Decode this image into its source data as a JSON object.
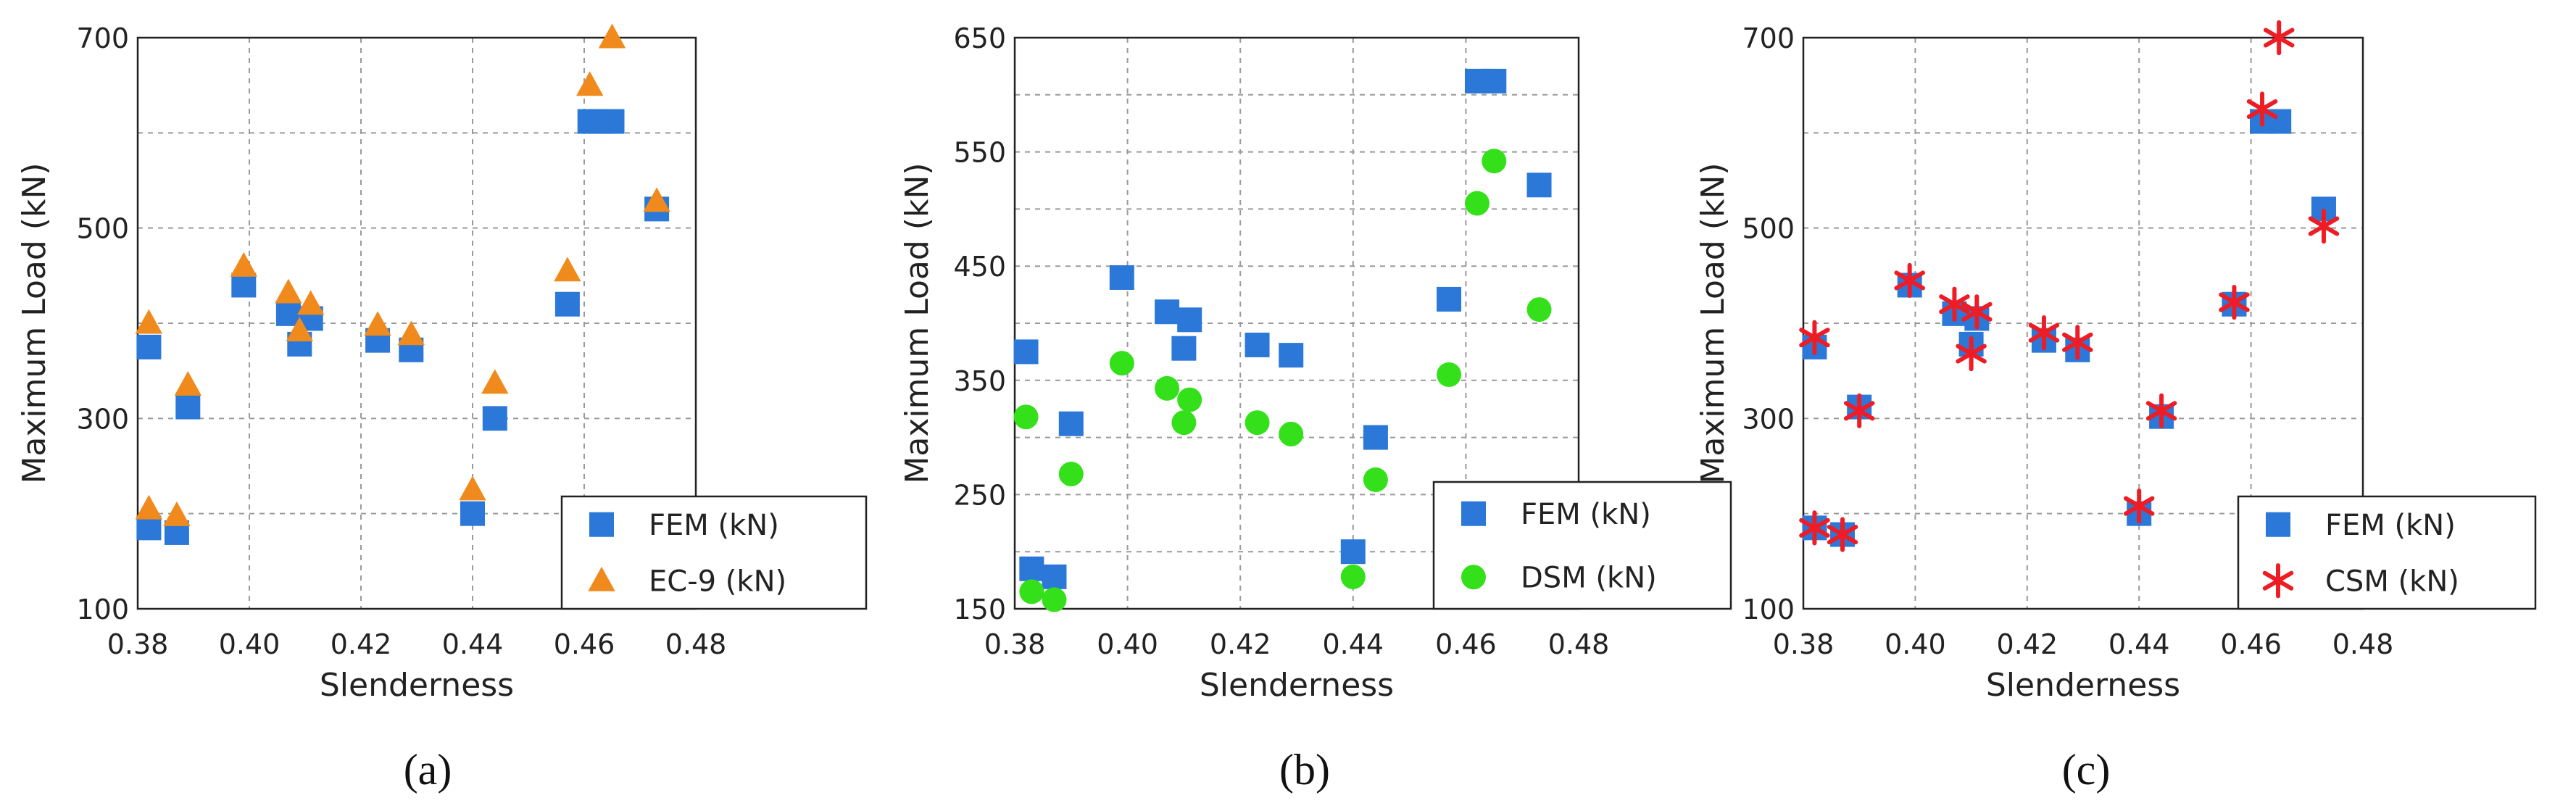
{
  "colors": {
    "fem": "#2b78d9",
    "ec9": "#f08a1c",
    "dsm": "#33e01a",
    "csm": "#ee1c24",
    "grid": "#9a9a9a"
  },
  "panels": [
    {
      "caption": "(a)",
      "xlabel": "Slenderness",
      "ylabel": "Maximum Load (kN)"
    },
    {
      "caption": "(b)",
      "xlabel": "Slenderness",
      "ylabel": "Maximum Load (kN)"
    },
    {
      "caption": "(c)",
      "xlabel": "Slenderness",
      "ylabel": "Maximum Load (kN)"
    }
  ],
  "chart_data": [
    {
      "type": "scatter",
      "xlabel": "Slenderness",
      "ylabel": "Maximum Load (kN)",
      "xlim": [
        0.38,
        0.48
      ],
      "ylim": [
        100,
        700
      ],
      "xticks": [
        "0.38",
        "0.40",
        "0.42",
        "0.44",
        "0.46",
        "0.48"
      ],
      "yticks": [
        "100",
        "300",
        "500",
        "700"
      ],
      "grid": true,
      "legend": "bottom-right",
      "series": [
        {
          "name": "FEM (kN)",
          "marker": "square",
          "x": [
            0.382,
            0.382,
            0.387,
            0.389,
            0.399,
            0.407,
            0.409,
            0.411,
            0.423,
            0.429,
            0.44,
            0.444,
            0.457,
            0.461,
            0.463,
            0.465,
            0.473
          ],
          "y": [
            375,
            185,
            180,
            312,
            440,
            410,
            378,
            405,
            382,
            372,
            200,
            300,
            420,
            612,
            612,
            612,
            520
          ]
        },
        {
          "name": "EC-9 (kN)",
          "marker": "triangle",
          "x": [
            0.382,
            0.382,
            0.387,
            0.389,
            0.399,
            0.407,
            0.409,
            0.411,
            0.423,
            0.429,
            0.44,
            0.444,
            0.457,
            0.461,
            0.465,
            0.473
          ],
          "y": [
            400,
            205,
            198,
            335,
            460,
            432,
            392,
            420,
            398,
            388,
            225,
            337,
            455,
            650,
            700,
            528
          ]
        }
      ]
    },
    {
      "type": "scatter",
      "xlabel": "Slenderness",
      "ylabel": "Maximum Load (kN)",
      "xlim": [
        0.38,
        0.48
      ],
      "ylim": [
        150,
        650
      ],
      "xticks": [
        "0.38",
        "0.40",
        "0.42",
        "0.44",
        "0.46",
        "0.48"
      ],
      "yticks": [
        "150",
        "250",
        "350",
        "450",
        "550",
        "650"
      ],
      "grid": true,
      "legend": "bottom-right",
      "series": [
        {
          "name": "FEM (kN)",
          "marker": "square",
          "x": [
            0.382,
            0.383,
            0.387,
            0.39,
            0.399,
            0.407,
            0.41,
            0.411,
            0.423,
            0.429,
            0.44,
            0.444,
            0.457,
            0.462,
            0.465,
            0.473
          ],
          "y": [
            375,
            185,
            178,
            312,
            440,
            410,
            378,
            403,
            381,
            372,
            200,
            300,
            421,
            612,
            612,
            521
          ]
        },
        {
          "name": "DSM (kN)",
          "marker": "circle",
          "x": [
            0.382,
            0.383,
            0.387,
            0.39,
            0.399,
            0.407,
            0.41,
            0.411,
            0.423,
            0.429,
            0.44,
            0.444,
            0.457,
            0.462,
            0.465,
            0.473
          ],
          "y": [
            318,
            165,
            158,
            268,
            365,
            343,
            313,
            333,
            313,
            303,
            178,
            263,
            355,
            505,
            542,
            412
          ]
        }
      ]
    },
    {
      "type": "scatter",
      "xlabel": "Slenderness",
      "ylabel": "Maximum Load (kN)",
      "xlim": [
        0.38,
        0.48
      ],
      "ylim": [
        100,
        700
      ],
      "xticks": [
        "0.38",
        "0.40",
        "0.42",
        "0.44",
        "0.46",
        "0.48"
      ],
      "yticks": [
        "100",
        "300",
        "500",
        "700"
      ],
      "grid": true,
      "legend": "bottom-right",
      "series": [
        {
          "name": "FEM (kN)",
          "marker": "square",
          "x": [
            0.382,
            0.382,
            0.387,
            0.39,
            0.399,
            0.407,
            0.41,
            0.411,
            0.423,
            0.429,
            0.44,
            0.444,
            0.457,
            0.462,
            0.465,
            0.473
          ],
          "y": [
            375,
            185,
            178,
            312,
            440,
            410,
            378,
            405,
            382,
            372,
            200,
            302,
            420,
            612,
            612,
            520
          ]
        },
        {
          "name": "CSM (kN)",
          "marker": "asterisk",
          "x": [
            0.382,
            0.382,
            0.387,
            0.39,
            0.399,
            0.407,
            0.41,
            0.411,
            0.423,
            0.429,
            0.44,
            0.444,
            0.457,
            0.462,
            0.465,
            0.473
          ],
          "y": [
            385,
            185,
            178,
            308,
            445,
            420,
            368,
            412,
            390,
            380,
            208,
            308,
            422,
            625,
            700,
            502
          ]
        }
      ]
    }
  ]
}
